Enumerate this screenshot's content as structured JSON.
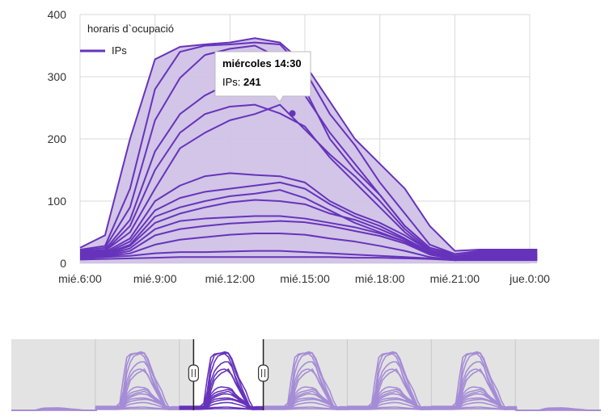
{
  "chart_data": {
    "type": "line",
    "title": "",
    "legend": {
      "title": "horaris d`ocupació",
      "position": "top-left",
      "entries": [
        "IPs"
      ]
    },
    "xlabel": "",
    "ylabel": "",
    "x_tick_labels": [
      "mié.6:00",
      "mié.9:00",
      "mié.12:00",
      "mié.15:00",
      "mié.18:00",
      "mié.21:00",
      "jue.0:00"
    ],
    "x_tick_hours": [
      6,
      9,
      12,
      15,
      18,
      21,
      24
    ],
    "y_ticks": [
      0,
      100,
      200,
      300,
      400
    ],
    "ylim": [
      0,
      400
    ],
    "xlim_hours": [
      6,
      24
    ],
    "grid": true,
    "x": [
      6,
      7,
      8,
      9,
      10,
      11,
      12,
      13,
      14,
      15,
      16,
      17,
      18,
      19,
      20,
      21,
      22,
      23,
      24.3
    ],
    "envelope": [
      25,
      45,
      200,
      328,
      348,
      352,
      355,
      362,
      355,
      320,
      260,
      200,
      160,
      120,
      60,
      20,
      22,
      22,
      22
    ],
    "series": [
      {
        "name": "IPs",
        "values": [
          25,
          45,
          200,
          328,
          348,
          352,
          355,
          362,
          355,
          320,
          260,
          200,
          160,
          120,
          60,
          20,
          22,
          22,
          22
        ]
      },
      {
        "values": [
          22,
          28,
          120,
          280,
          340,
          350,
          352,
          355,
          352,
          310,
          240,
          190,
          130,
          80,
          30,
          15,
          20,
          20,
          20
        ]
      },
      {
        "values": [
          20,
          25,
          90,
          230,
          298,
          335,
          345,
          350,
          330,
          280,
          200,
          150,
          110,
          60,
          25,
          15,
          18,
          18,
          18
        ]
      },
      {
        "values": [
          18,
          22,
          70,
          180,
          240,
          270,
          290,
          300,
          300,
          270,
          210,
          160,
          110,
          60,
          25,
          12,
          16,
          16,
          16
        ]
      },
      {
        "values": [
          18,
          20,
          60,
          150,
          210,
          240,
          252,
          255,
          241,
          220,
          170,
          130,
          90,
          50,
          20,
          12,
          15,
          15,
          15
        ]
      },
      {
        "values": [
          16,
          20,
          50,
          120,
          185,
          210,
          230,
          240,
          255,
          215,
          175,
          140,
          100,
          55,
          22,
          10,
          14,
          14,
          14
        ]
      },
      {
        "values": [
          15,
          18,
          40,
          100,
          125,
          140,
          145,
          142,
          140,
          130,
          100,
          80,
          65,
          45,
          20,
          10,
          13,
          13,
          13
        ]
      },
      {
        "values": [
          14,
          16,
          35,
          85,
          105,
          115,
          120,
          125,
          130,
          120,
          95,
          75,
          60,
          40,
          18,
          9,
          12,
          12,
          12
        ]
      },
      {
        "values": [
          13,
          15,
          30,
          75,
          90,
          100,
          108,
          112,
          118,
          105,
          85,
          65,
          50,
          35,
          16,
          8,
          11,
          11,
          11
        ]
      },
      {
        "values": [
          12,
          14,
          28,
          65,
          80,
          90,
          98,
          102,
          100,
          95,
          80,
          70,
          55,
          38,
          16,
          8,
          10,
          10,
          10
        ]
      },
      {
        "values": [
          11,
          13,
          24,
          55,
          68,
          72,
          74,
          76,
          76,
          72,
          65,
          58,
          48,
          35,
          15,
          7,
          9,
          9,
          9
        ]
      },
      {
        "values": [
          10,
          12,
          20,
          45,
          55,
          60,
          64,
          66,
          68,
          66,
          60,
          52,
          44,
          32,
          14,
          6,
          8,
          8,
          8
        ]
      },
      {
        "values": [
          9,
          11,
          16,
          30,
          38,
          42,
          46,
          48,
          48,
          46,
          40,
          35,
          28,
          20,
          10,
          5,
          7,
          7,
          7
        ]
      },
      {
        "values": [
          8,
          10,
          12,
          16,
          18,
          18,
          19,
          20,
          20,
          18,
          16,
          14,
          12,
          10,
          8,
          5,
          6,
          6,
          6
        ]
      },
      {
        "values": [
          6,
          7,
          8,
          9,
          10,
          10,
          10,
          10,
          10,
          10,
          10,
          9,
          9,
          8,
          7,
          5,
          5,
          5,
          5
        ]
      }
    ],
    "highlight": {
      "title": "miércoles 14:30",
      "label": "IPs:",
      "value": "241",
      "x": 14.5,
      "y": 241
    },
    "colors": {
      "line": "#6633bb",
      "fill": "#d0c2e6",
      "grid": "#d9d9d9",
      "nav_bg": "#e3e3e3",
      "nav_line": "#a58cd6"
    }
  },
  "navigator": {
    "days": 7,
    "selected_range_days": [
      2.17,
      3.0
    ],
    "active_days": [
      1,
      2,
      3,
      4,
      5
    ],
    "handle_left_icon": "drag-handle-icon",
    "handle_right_icon": "drag-handle-icon"
  }
}
